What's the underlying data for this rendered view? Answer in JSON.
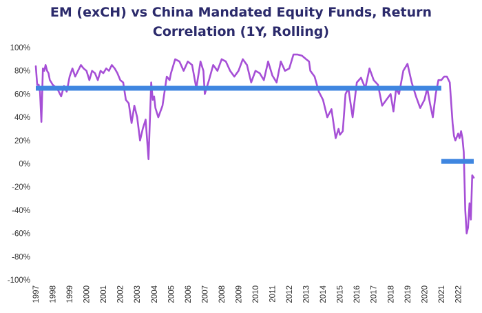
{
  "chart_data": {
    "type": "line",
    "title_line1": "EM (exCH) vs China Mandated Equity Funds, Return",
    "title_line2": "Correlation (1Y, Rolling)",
    "xlabel": "",
    "ylabel": "",
    "ylim": [
      -100,
      100
    ],
    "y_unit": "%",
    "xlim": [
      1997.0,
      2022.92
    ],
    "y_ticks": [
      "100%",
      "80%",
      "60%",
      "40%",
      "20%",
      "0%",
      "-20%",
      "-40%",
      "-60%",
      "-80%",
      "-100%"
    ],
    "x_ticks": [
      "1997",
      "1998",
      "1999",
      "2000",
      "2001",
      "2002",
      "2003",
      "2004",
      "2005",
      "2006",
      "2007",
      "2008",
      "2009",
      "2010",
      "2011",
      "2012",
      "2013",
      "2014",
      "2015",
      "2016",
      "2017",
      "2018",
      "2019",
      "2020",
      "2021",
      "2022"
    ],
    "grid": false,
    "legend": "none",
    "series": [
      {
        "type": "line",
        "color": "#a64fd6",
        "x": [
          1997.0,
          1997.08,
          1997.17,
          1997.25,
          1997.33,
          1997.42,
          1997.5,
          1997.58,
          1997.67,
          1997.75,
          1997.83,
          1997.92,
          1998.0,
          1998.17,
          1998.33,
          1998.5,
          1998.67,
          1998.83,
          1999.0,
          1999.17,
          1999.33,
          1999.5,
          1999.67,
          1999.83,
          2000.0,
          2000.17,
          2000.33,
          2000.5,
          2000.67,
          2000.83,
          2001.0,
          2001.17,
          2001.33,
          2001.5,
          2001.67,
          2001.83,
          2002.0,
          2002.17,
          2002.33,
          2002.5,
          2002.67,
          2002.83,
          2003.0,
          2003.17,
          2003.33,
          2003.5,
          2003.67,
          2003.83,
          2003.92,
          2004.0,
          2004.08,
          2004.25,
          2004.5,
          2004.75,
          2004.92,
          2005.0,
          2005.25,
          2005.5,
          2005.75,
          2006.0,
          2006.25,
          2006.5,
          2006.75,
          2006.92,
          2007.0,
          2007.25,
          2007.5,
          2007.75,
          2008.0,
          2008.25,
          2008.5,
          2008.75,
          2009.0,
          2009.25,
          2009.5,
          2009.75,
          2010.0,
          2010.25,
          2010.5,
          2010.75,
          2011.0,
          2011.25,
          2011.5,
          2011.75,
          2012.0,
          2012.25,
          2012.5,
          2012.75,
          2013.0,
          2013.17,
          2013.25,
          2013.5,
          2013.75,
          2014.0,
          2014.25,
          2014.5,
          2014.75,
          2014.92,
          2015.0,
          2015.17,
          2015.33,
          2015.5,
          2015.75,
          2016.0,
          2016.25,
          2016.5,
          2016.75,
          2017.0,
          2017.25,
          2017.5,
          2017.75,
          2018.0,
          2018.17,
          2018.33,
          2018.5,
          2018.75,
          2019.0,
          2019.25,
          2019.5,
          2019.75,
          2020.0,
          2020.17,
          2020.33,
          2020.5,
          2020.67,
          2020.83,
          2021.0,
          2021.17,
          2021.33,
          2021.5,
          2021.67,
          2021.75,
          2021.83,
          2022.0,
          2022.08,
          2022.17,
          2022.25,
          2022.33,
          2022.42,
          2022.5,
          2022.58,
          2022.67,
          2022.75,
          2022.83,
          2022.92
        ],
        "y": [
          84,
          68,
          68,
          62,
          36,
          82,
          80,
          85,
          80,
          78,
          72,
          70,
          68,
          66,
          63,
          58,
          67,
          62,
          75,
          82,
          75,
          80,
          85,
          82,
          80,
          72,
          80,
          78,
          72,
          80,
          78,
          82,
          80,
          85,
          82,
          78,
          72,
          70,
          55,
          52,
          35,
          50,
          40,
          20,
          30,
          38,
          4,
          70,
          55,
          58,
          48,
          40,
          50,
          75,
          72,
          78,
          90,
          88,
          80,
          88,
          85,
          65,
          88,
          80,
          60,
          72,
          85,
          80,
          90,
          88,
          80,
          75,
          80,
          90,
          85,
          70,
          80,
          78,
          72,
          88,
          76,
          70,
          88,
          80,
          82,
          94,
          94,
          93,
          90,
          88,
          80,
          75,
          62,
          55,
          40,
          47,
          22,
          30,
          25,
          28,
          60,
          65,
          40,
          70,
          74,
          65,
          82,
          72,
          68,
          50,
          55,
          60,
          45,
          65,
          60,
          80,
          86,
          70,
          58,
          48,
          55,
          65,
          52,
          40,
          60,
          72,
          72,
          75,
          75,
          70,
          35,
          24,
          20,
          26,
          22,
          28,
          22,
          10,
          -40,
          -60,
          -55,
          -34,
          -48,
          -10,
          -12
        ]
      }
    ],
    "annotations": [
      {
        "type": "reference_bar",
        "color": "#3f86e0",
        "x_from": 1997.0,
        "x_to": 2021.0,
        "y": 65
      },
      {
        "type": "reference_bar",
        "color": "#3f86e0",
        "x_from": 2021.0,
        "x_to": 2022.92,
        "y": 2
      }
    ]
  }
}
